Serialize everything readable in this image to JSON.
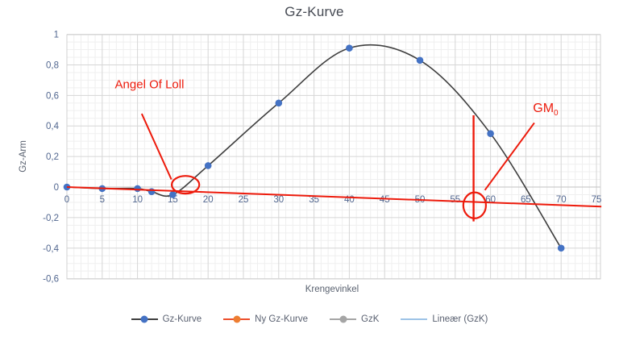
{
  "title": "Gz-Kurve",
  "x_axis_title": "Krengevinkel",
  "y_axis_title": "Gz-Arm",
  "legend": [
    {
      "label": "Gz-Kurve",
      "line_color": "#3f3f3f",
      "marker_color": "#4472C4",
      "has_marker": true
    },
    {
      "label": "Ny Gz-Kurve",
      "line_color": "#ED4E2B",
      "marker_color": "#ED7D31",
      "has_marker": true
    },
    {
      "label": "GzK",
      "line_color": "#A5A5A5",
      "marker_color": "#A5A5A5",
      "has_marker": true
    },
    {
      "label": "Lineær (GzK)",
      "line_color": "#9DC3E6",
      "marker_color": null,
      "has_marker": false
    }
  ],
  "chart_data": {
    "type": "line",
    "title": "Gz-Kurve",
    "xlabel": "Krengevinkel",
    "ylabel": "Gz-Arm",
    "x_range": [
      0,
      75
    ],
    "y_range": [
      -0.6,
      1
    ],
    "x_major_step": 5,
    "x_minor_step": 1,
    "y_major_step": 0.2,
    "y_minor_step": 0.05,
    "grid": "major+minor",
    "legend_position": "bottom",
    "x_ticks": [
      {
        "v": 0,
        "label": "0"
      },
      {
        "v": 5,
        "label": "5"
      },
      {
        "v": 10,
        "label": "10"
      },
      {
        "v": 15,
        "label": "15"
      },
      {
        "v": 20,
        "label": "20"
      },
      {
        "v": 25,
        "label": "25"
      },
      {
        "v": 30,
        "label": "30"
      },
      {
        "v": 35,
        "label": "35"
      },
      {
        "v": 40,
        "label": "40"
      },
      {
        "v": 45,
        "label": "45"
      },
      {
        "v": 50,
        "label": "50"
      },
      {
        "v": 55,
        "label": "55"
      },
      {
        "v": 60,
        "label": "60"
      },
      {
        "v": 65,
        "label": "65"
      },
      {
        "v": 70,
        "label": "70"
      },
      {
        "v": 75,
        "label": "75"
      }
    ],
    "y_ticks": [
      {
        "v": 1,
        "label": "1"
      },
      {
        "v": 0.8,
        "label": "0,8"
      },
      {
        "v": 0.6,
        "label": "0,6"
      },
      {
        "v": 0.4,
        "label": "0,4"
      },
      {
        "v": 0.2,
        "label": "0,2"
      },
      {
        "v": 0,
        "label": "0"
      },
      {
        "v": -0.2,
        "label": "-0,2"
      },
      {
        "v": -0.4,
        "label": "-0,4"
      },
      {
        "v": -0.6,
        "label": "-0,6"
      }
    ],
    "series": [
      {
        "name": "Gz-Kurve",
        "x": [
          0,
          5,
          10,
          12,
          15,
          20,
          30,
          40,
          50,
          60,
          70
        ],
        "y": [
          0,
          -0.01,
          -0.01,
          -0.03,
          -0.05,
          0.14,
          0.55,
          0.91,
          0.83,
          0.35,
          -0.4
        ],
        "line_color": "#3f3f3f",
        "marker_color": "#4472C4",
        "smooth": true
      }
    ],
    "annotations": {
      "color": "#ED1B0C",
      "loll_label": {
        "text": "Angel Of Loll",
        "x": 11.7,
        "y": 0.67
      },
      "loll_pointer": {
        "x1": 10.6,
        "y1": 0.48,
        "x2": 14.8,
        "y2": 0.05
      },
      "loll_ellipse": {
        "cx": 16.8,
        "cy": 0.015,
        "rx": 1.95,
        "ry": 0.058
      },
      "gm_slope_line": {
        "x1": 0,
        "y1": 0,
        "x2": 75.7,
        "y2": -0.128
      },
      "gm_vertical_line": {
        "x": 57.6,
        "y1": 0.47,
        "y2": -0.225
      },
      "gm_circle": {
        "cx": 57.75,
        "cy": -0.12,
        "rx": 1.6,
        "ry": 0.085
      },
      "gm_pointer": {
        "x1": 59.2,
        "y1": -0.02,
        "x2": 66.2,
        "y2": 0.42
      },
      "gm_label": {
        "main": "GM",
        "sub": "0",
        "x": 67.8,
        "y": 0.505
      }
    }
  }
}
